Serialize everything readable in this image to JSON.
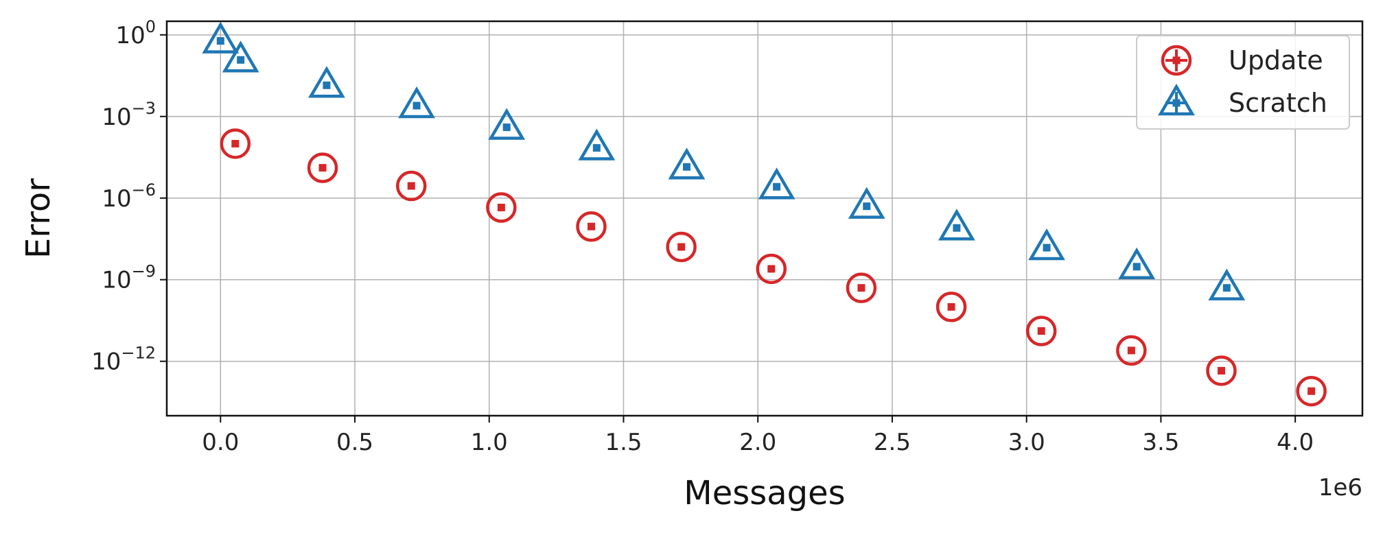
{
  "chart_data": {
    "type": "scatter",
    "xlabel": "Messages",
    "ylabel": "Error",
    "x_offset_text": "1e6",
    "x_scale_factor": 1000000,
    "xlim": [
      -200000,
      4250000
    ],
    "ylim_log10": [
      -14.0,
      0.5
    ],
    "yscale": "log",
    "grid": true,
    "legend_position": "top-right",
    "x_ticks": [
      "0.0",
      "0.5",
      "1.0",
      "1.5",
      "2.0",
      "2.5",
      "3.0",
      "3.5",
      "4.0"
    ],
    "x_tick_values": [
      0,
      500000,
      1000000,
      1500000,
      2000000,
      2500000,
      3000000,
      3500000,
      4000000
    ],
    "y_ticks": [
      {
        "base": "10",
        "exp": "0",
        "value": 1
      },
      {
        "base": "10",
        "exp": "−3",
        "value": 0.001
      },
      {
        "base": "10",
        "exp": "−6",
        "value": 1e-06
      },
      {
        "base": "10",
        "exp": "−9",
        "value": 1e-09
      },
      {
        "base": "10",
        "exp": "−12",
        "value": 1e-12
      }
    ],
    "series": [
      {
        "name": "Update",
        "color": "#d62728",
        "marker": "circle",
        "x": [
          55000,
          380000,
          710000,
          1045000,
          1380000,
          1715000,
          2050000,
          2385000,
          2720000,
          3055000,
          3390000,
          3725000,
          4060000
        ],
        "y": [
          0.0001,
          1.3e-05,
          2.8e-06,
          4.5e-07,
          9e-08,
          1.6e-08,
          2.5e-09,
          5e-10,
          1e-10,
          1.3e-11,
          2.5e-12,
          4.5e-13,
          8e-14
        ]
      },
      {
        "name": "Scratch",
        "color": "#1f77b4",
        "marker": "triangle",
        "x": [
          0,
          75000,
          395000,
          730000,
          1065000,
          1400000,
          1735000,
          2070000,
          2405000,
          2740000,
          3075000,
          3410000,
          3745000
        ],
        "y": [
          0.6,
          0.12,
          0.014,
          0.0025,
          0.0004,
          7e-05,
          1.4e-05,
          2.6e-06,
          5e-07,
          8e-08,
          1.5e-08,
          3e-09,
          5e-10
        ]
      }
    ]
  }
}
